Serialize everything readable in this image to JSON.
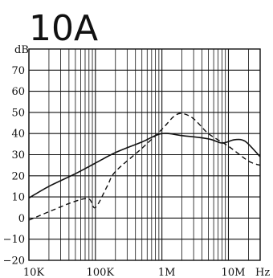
{
  "chart_data": {
    "type": "line",
    "title": "10A",
    "ylabel": "dB",
    "xlabel_unit": "Hz",
    "x_scale": "log",
    "xlim": [
      10000,
      30000000
    ],
    "ylim": [
      -20,
      80
    ],
    "x_ticks": [
      {
        "value": 10000,
        "label": "10K"
      },
      {
        "value": 100000,
        "label": "100K"
      },
      {
        "value": 1000000,
        "label": "1M"
      },
      {
        "value": 10000000,
        "label": "10M"
      }
    ],
    "y_ticks": [
      {
        "value": 70,
        "label": "70"
      },
      {
        "value": 60,
        "label": "60"
      },
      {
        "value": 50,
        "label": "50"
      },
      {
        "value": 40,
        "label": "40"
      },
      {
        "value": 30,
        "label": "30"
      },
      {
        "value": 20,
        "label": "20"
      },
      {
        "value": 10,
        "label": "10"
      },
      {
        "value": 0,
        "label": "0"
      },
      {
        "value": -10,
        "label": "−10"
      },
      {
        "value": -20,
        "label": "−20"
      }
    ],
    "grid": true,
    "series": [
      {
        "style": "solid",
        "x": [
          10000,
          20000,
          50000,
          100000,
          200000,
          500000,
          1000000,
          2000000,
          5000000,
          8000000,
          12000000,
          16000000,
          20000000,
          30000000
        ],
        "y": [
          9.5,
          15,
          21,
          26,
          31,
          36,
          40,
          39,
          37.5,
          35.5,
          37,
          37,
          35,
          29
        ]
      },
      {
        "style": "dashed",
        "x": [
          10000,
          20000,
          50000,
          80000,
          100000,
          150000,
          200000,
          500000,
          1000000,
          1500000,
          2000000,
          3000000,
          5000000,
          10000000,
          20000000,
          30000000
        ],
        "y": [
          -1,
          3,
          8,
          9,
          5,
          15,
          22,
          33,
          42,
          48,
          49.5,
          47,
          40,
          34,
          27,
          25
        ]
      }
    ]
  }
}
